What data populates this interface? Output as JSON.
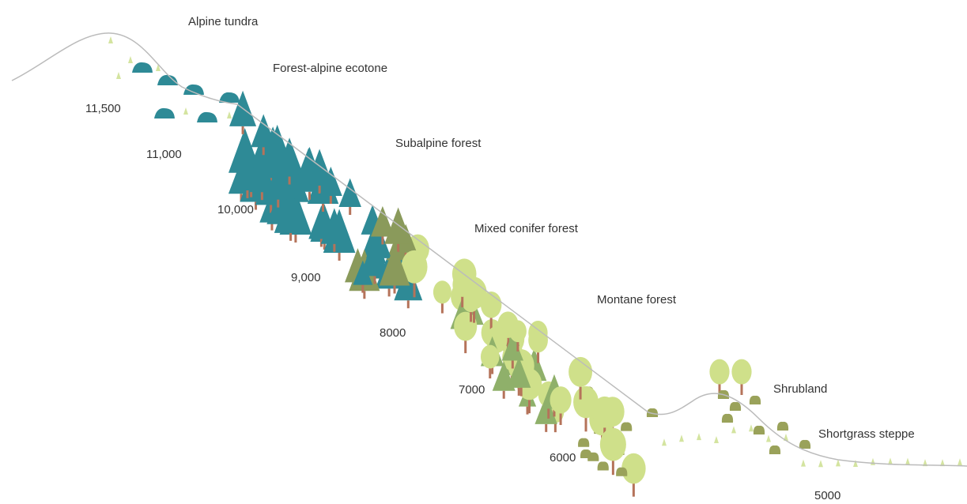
{
  "zones": [
    "Alpine tundra",
    "Forest-alpine ecotone",
    "Subalpine forest",
    "Mixed conifer forest",
    "Montane forest",
    "Shrubland",
    "Shortgrass steppe"
  ],
  "elevations": [
    "11,500",
    "11,000",
    "10,000",
    "9,000",
    "8000",
    "7000",
    "6000",
    "5000"
  ]
}
